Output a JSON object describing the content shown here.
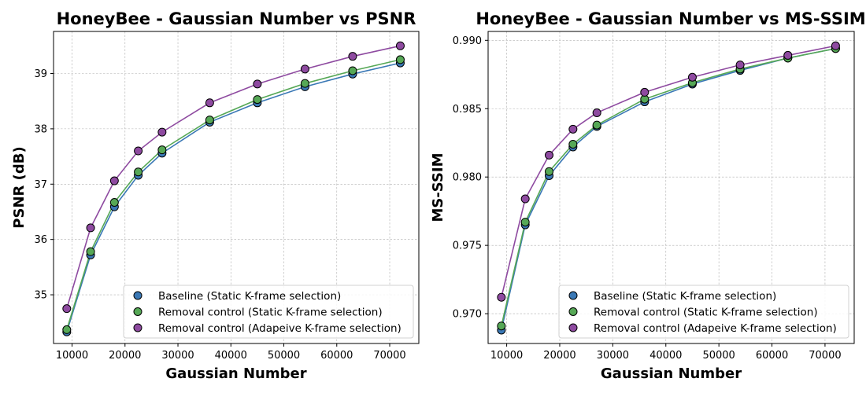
{
  "chart_data": [
    {
      "type": "line",
      "title": "HoneyBee - Gaussian Number vs PSNR",
      "xlabel": "Gaussian Number",
      "ylabel": "PSNR (dB)",
      "xlim": [
        6500,
        75500
      ],
      "ylim": [
        34.12,
        39.76
      ],
      "xticks": [
        10000,
        20000,
        30000,
        40000,
        50000,
        60000,
        70000
      ],
      "yticks": [
        35,
        36,
        37,
        38,
        39
      ],
      "ytick_labels": [
        "35",
        "36",
        "37",
        "38",
        "39"
      ],
      "grid": true,
      "legend_position": "lower-right",
      "x": [
        9000,
        13500,
        18000,
        22500,
        27000,
        36000,
        45000,
        54000,
        63000,
        72000
      ],
      "series": [
        {
          "name": "Baseline (Static K-frame selection)",
          "color": "#3a78b5",
          "values": [
            34.33,
            35.72,
            36.59,
            37.16,
            37.56,
            38.12,
            38.47,
            38.76,
            38.99,
            39.19
          ]
        },
        {
          "name": "Removal control (Static K-frame selection)",
          "color": "#56a856",
          "values": [
            34.37,
            35.78,
            36.67,
            37.22,
            37.62,
            38.16,
            38.53,
            38.82,
            39.05,
            39.25
          ]
        },
        {
          "name": "Removal control (Adapeive K-frame selection)",
          "color": "#8e4aa0",
          "values": [
            34.75,
            36.21,
            37.06,
            37.6,
            37.94,
            38.47,
            38.81,
            39.08,
            39.31,
            39.5
          ]
        }
      ]
    },
    {
      "type": "line",
      "title": "HoneyBee - Gaussian Number vs MS-SSIM",
      "xlabel": "Gaussian Number",
      "ylabel": "MS-SSIM",
      "xlim": [
        6500,
        75500
      ],
      "ylim": [
        0.96782,
        0.99065
      ],
      "xticks": [
        10000,
        20000,
        30000,
        40000,
        50000,
        60000,
        70000
      ],
      "yticks": [
        0.97,
        0.975,
        0.98,
        0.985,
        0.99
      ],
      "ytick_labels": [
        "0.970",
        "0.975",
        "0.980",
        "0.985",
        "0.990"
      ],
      "grid": true,
      "legend_position": "lower-right",
      "x": [
        9000,
        13500,
        18000,
        22500,
        27000,
        36000,
        45000,
        54000,
        63000,
        72000
      ],
      "series": [
        {
          "name": "Baseline (Static K-frame selection)",
          "color": "#3a78b5",
          "values": [
            0.9688,
            0.9765,
            0.9801,
            0.9822,
            0.9837,
            0.9855,
            0.9868,
            0.9878,
            0.9887,
            0.9894
          ]
        },
        {
          "name": "Removal control (Static K-frame selection)",
          "color": "#56a856",
          "values": [
            0.9691,
            0.9767,
            0.9804,
            0.9824,
            0.9838,
            0.9857,
            0.9869,
            0.9879,
            0.9887,
            0.9894
          ]
        },
        {
          "name": "Removal control (Adapeive K-frame selection)",
          "color": "#8e4aa0",
          "values": [
            0.9712,
            0.9784,
            0.9816,
            0.9835,
            0.9847,
            0.9862,
            0.9873,
            0.9882,
            0.9889,
            0.9896
          ]
        }
      ]
    }
  ]
}
